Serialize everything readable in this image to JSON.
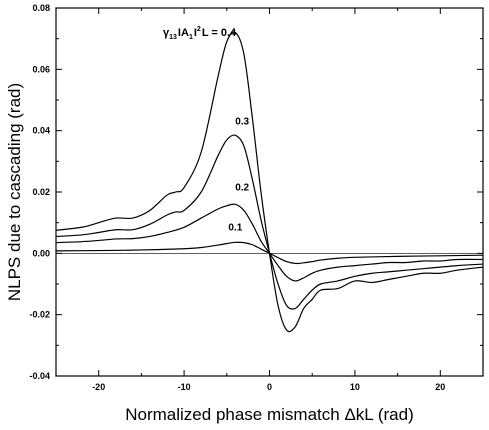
{
  "chart_data": {
    "type": "line",
    "title": "",
    "xlabel": "Normalized phase mismatch ΔkL (rad)",
    "ylabel": "NLPS due to cascading (rad)",
    "xlim": [
      -25,
      25
    ],
    "ylim": [
      -0.04,
      0.08
    ],
    "xticks": [
      -20,
      -10,
      0,
      10,
      20
    ],
    "yticks": [
      -0.04,
      -0.02,
      0.0,
      0.02,
      0.04,
      0.06,
      0.08
    ],
    "ytick_labels": [
      "-0.04",
      "-0.02",
      "0.00",
      "0.02",
      "0.04",
      "0.06",
      "0.08"
    ],
    "grid": false,
    "annotation": {
      "gamma": "γ",
      "gamma_sub": "13",
      "bar_left": "I",
      "amp": "A",
      "amp_sub": "1",
      "bar_right": "I",
      "exp": "2",
      "tail": "L = 0.4"
    },
    "series": [
      {
        "name": "0.4",
        "x": [
          -25,
          -22,
          -20,
          -18,
          -16,
          -14,
          -12,
          -11,
          -10,
          -8,
          -6,
          -5,
          -4,
          -3,
          -2,
          -1,
          0,
          1,
          2,
          3,
          4,
          5,
          6,
          8,
          10,
          12,
          14,
          16,
          18,
          20,
          22,
          25
        ],
        "y": [
          0.0075,
          0.0085,
          0.01,
          0.0115,
          0.0115,
          0.014,
          0.019,
          0.02,
          0.0215,
          0.033,
          0.058,
          0.069,
          0.072,
          0.065,
          0.044,
          0.02,
          0.0,
          -0.017,
          -0.025,
          -0.024,
          -0.018,
          -0.015,
          -0.012,
          -0.0115,
          -0.009,
          -0.0095,
          -0.0085,
          -0.0075,
          -0.0065,
          -0.0065,
          -0.0055,
          -0.0045
        ]
      },
      {
        "name": "0.3",
        "x": [
          -25,
          -22,
          -20,
          -18,
          -16,
          -14,
          -12,
          -11,
          -10,
          -8,
          -6,
          -5,
          -4,
          -3,
          -2,
          -1,
          0,
          1,
          2,
          3,
          4,
          5,
          6,
          8,
          10,
          12,
          14,
          16,
          18,
          20,
          22,
          25
        ],
        "y": [
          0.0055,
          0.006,
          0.0068,
          0.0077,
          0.0077,
          0.0095,
          0.0125,
          0.0135,
          0.014,
          0.02,
          0.032,
          0.037,
          0.0385,
          0.035,
          0.024,
          0.011,
          0.0,
          -0.01,
          -0.017,
          -0.018,
          -0.015,
          -0.012,
          -0.01,
          -0.009,
          -0.0075,
          -0.0065,
          -0.006,
          -0.0055,
          -0.005,
          -0.0045,
          -0.004,
          -0.0035
        ]
      },
      {
        "name": "0.2",
        "x": [
          -25,
          -22,
          -20,
          -18,
          -16,
          -14,
          -12,
          -10,
          -8,
          -6,
          -5,
          -4,
          -3,
          -2,
          -1,
          0,
          1,
          2,
          3,
          4,
          5,
          6,
          8,
          10,
          12,
          14,
          16,
          18,
          20,
          22,
          25
        ],
        "y": [
          0.0035,
          0.0038,
          0.0042,
          0.0047,
          0.0048,
          0.0055,
          0.0068,
          0.0085,
          0.0115,
          0.0145,
          0.0155,
          0.016,
          0.014,
          0.0095,
          0.004,
          0.0,
          -0.004,
          -0.0075,
          -0.009,
          -0.008,
          -0.0065,
          -0.0055,
          -0.0045,
          -0.004,
          -0.0035,
          -0.003,
          -0.003,
          -0.0025,
          -0.0025,
          -0.002,
          -0.002
        ]
      },
      {
        "name": "0.1",
        "x": [
          -25,
          -20,
          -15,
          -10,
          -8,
          -6,
          -5,
          -4,
          -3,
          -2,
          -1,
          0,
          1,
          2,
          3,
          4,
          5,
          6,
          8,
          10,
          15,
          20,
          25
        ],
        "y": [
          0.0008,
          0.0009,
          0.0011,
          0.0015,
          0.0019,
          0.0027,
          0.0032,
          0.0036,
          0.0035,
          0.0028,
          0.0014,
          0.0,
          -0.0014,
          -0.0027,
          -0.0033,
          -0.0031,
          -0.0027,
          -0.0022,
          -0.0016,
          -0.0013,
          -0.001,
          -0.0008,
          -0.0006
        ]
      }
    ],
    "curve_labels": [
      {
        "text": "0.3",
        "x": -3.2,
        "y": 0.042
      },
      {
        "text": "0.2",
        "x": -3.2,
        "y": 0.0205
      },
      {
        "text": "0.1",
        "x": -4.0,
        "y": 0.0075
      }
    ]
  }
}
